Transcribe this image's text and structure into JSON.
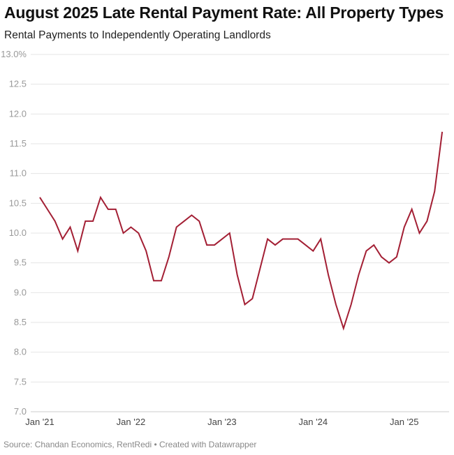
{
  "chart_data": {
    "type": "line",
    "title": "August 2025 Late Rental Payment Rate: All Property Types",
    "subtitle": "Rental Payments to Independently Operating Landlords",
    "source": "Source: Chandan Economics, RentRedi • Created with Datawrapper",
    "xlabel": "",
    "ylabel": "",
    "ylim": [
      7.0,
      13.0
    ],
    "y_ticks": [
      "13.0%",
      "12.5",
      "12.0",
      "11.5",
      "11.0",
      "10.5",
      "10.0",
      "9.5",
      "9.0",
      "8.5",
      "8.0",
      "7.5",
      "7.0"
    ],
    "x_ticks": [
      "Jan '21",
      "Jan '22",
      "Jan '23",
      "Jan '24",
      "Jan '25"
    ],
    "grid": true,
    "line_color": "#a31f34",
    "start_month": "2021-01",
    "values": [
      10.6,
      10.4,
      10.2,
      9.9,
      10.1,
      9.7,
      10.2,
      10.2,
      10.6,
      10.4,
      10.4,
      10.0,
      10.1,
      10.0,
      9.7,
      9.2,
      9.2,
      9.6,
      10.1,
      10.2,
      10.3,
      10.2,
      9.8,
      9.8,
      9.9,
      10.0,
      9.3,
      8.8,
      8.9,
      9.4,
      9.9,
      9.8,
      9.9,
      9.9,
      9.9,
      9.8,
      9.7,
      9.9,
      9.3,
      8.8,
      8.4,
      8.8,
      9.3,
      9.7,
      9.8,
      9.6,
      9.5,
      9.6,
      10.1,
      10.4,
      10.0,
      10.2,
      10.7,
      11.7
    ]
  }
}
